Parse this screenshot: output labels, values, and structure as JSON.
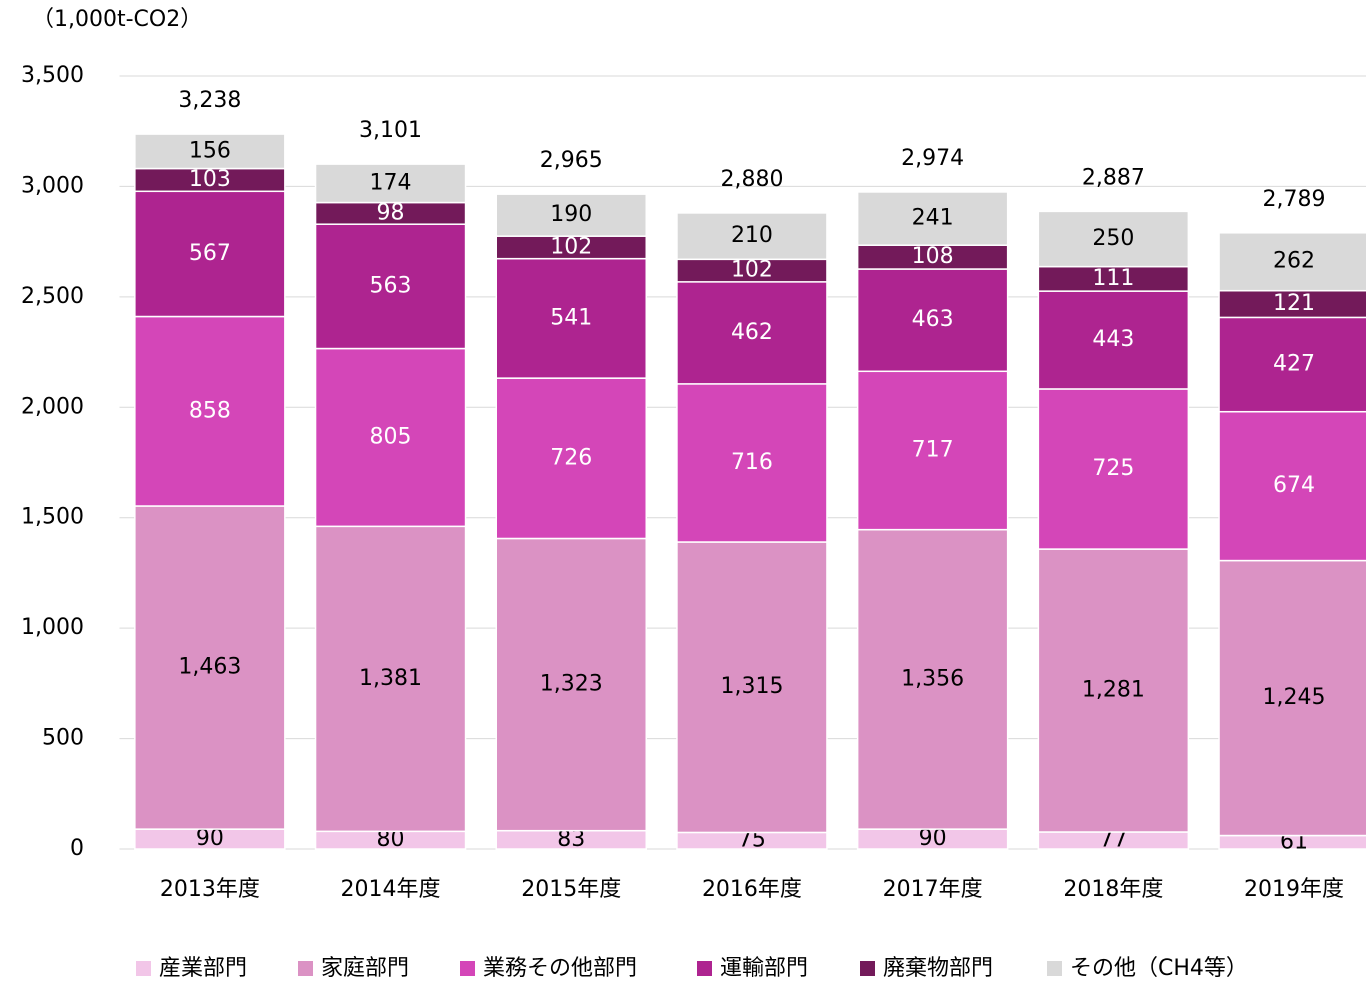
{
  "chart_data": {
    "type": "stacked_bar",
    "y_label": "（1,000t-CO2）",
    "categories": [
      "2013年度",
      "2014年度",
      "2015年度",
      "2016年度",
      "2017年度",
      "2018年度",
      "2019年度"
    ],
    "series": [
      {
        "name": "産業部門",
        "color": "#f2c6e8",
        "label_color": "#000000",
        "values": [
          90,
          80,
          83,
          75,
          90,
          77,
          61
        ]
      },
      {
        "name": "家庭部門",
        "color": "#db92c4",
        "label_color": "#000000",
        "values": [
          1463,
          1381,
          1323,
          1315,
          1356,
          1281,
          1245
        ],
        "value_labels": [
          "1,463",
          "1,381",
          "1,323",
          "1,315",
          "1,356",
          "1,281",
          "1,245"
        ]
      },
      {
        "name": "業務その他部門",
        "color": "#d446b8",
        "label_color": "#ffffff",
        "values": [
          858,
          805,
          726,
          716,
          717,
          725,
          674
        ]
      },
      {
        "name": "運輸部門",
        "color": "#ae2490",
        "label_color": "#ffffff",
        "values": [
          567,
          563,
          541,
          462,
          463,
          443,
          427
        ]
      },
      {
        "name": "廃棄物部門",
        "color": "#731a5a",
        "label_color": "#ffffff",
        "values": [
          103,
          98,
          102,
          102,
          108,
          111,
          121
        ]
      },
      {
        "name": "その他（CH4等）",
        "color": "#d9d9d9",
        "label_color": "#000000",
        "values": [
          156,
          174,
          190,
          210,
          241,
          250,
          262
        ]
      }
    ],
    "totals": [
      3238,
      3101,
      2965,
      2880,
      2974,
      2887,
      2789
    ],
    "total_labels": [
      "3,238",
      "3,101",
      "2,965",
      "2,880",
      "2,974",
      "2,887",
      "2,789"
    ],
    "ylim": [
      0,
      3500
    ],
    "yticks": [
      0,
      {
        "value": 500,
        "label": "500"
      },
      {
        "value": 1000,
        "label": "1,000"
      },
      {
        "value": 1500,
        "label": "1,500"
      },
      {
        "value": 2000,
        "label": "2,000"
      },
      {
        "value": 2500,
        "label": "2,500"
      },
      {
        "value": 3000,
        "label": "3,000"
      },
      {
        "value": 3500,
        "label": "3,500"
      }
    ],
    "grid": true,
    "legend": "bottom"
  }
}
